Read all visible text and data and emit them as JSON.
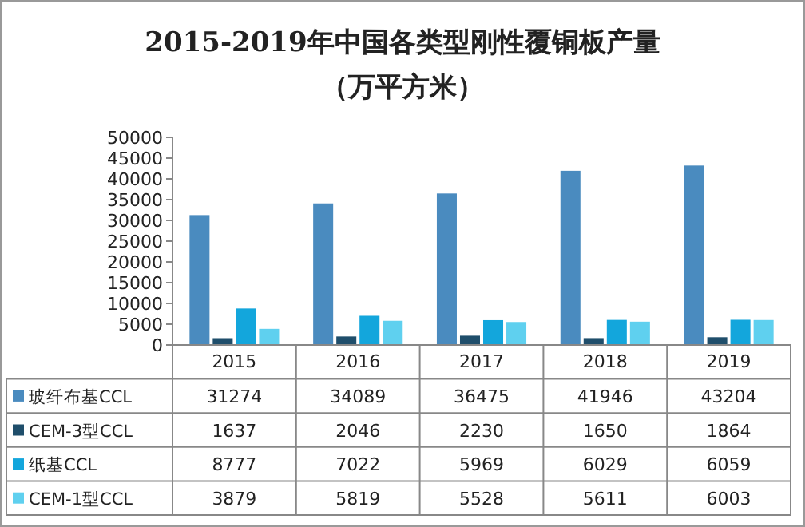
{
  "chart_data": {
    "type": "bar",
    "title": "2015-2019年中国各类型刚性覆铜板产量",
    "subtitle": "（万平方米）",
    "categories": [
      "2015",
      "2016",
      "2017",
      "2018",
      "2019"
    ],
    "series": [
      {
        "name": "玻纤布基CCL",
        "color": "#4a8bbf",
        "values": [
          31274,
          34089,
          36475,
          41946,
          43204
        ]
      },
      {
        "name": "CEM-3型CCL",
        "color": "#1f4e6b",
        "values": [
          1637,
          2046,
          2230,
          1650,
          1864
        ]
      },
      {
        "name": "纸基CCL",
        "color": "#13a6dc",
        "values": [
          8777,
          7022,
          5969,
          6029,
          6059
        ]
      },
      {
        "name": "CEM-1型CCL",
        "color": "#5fd0ef",
        "values": [
          3879,
          5819,
          5528,
          5611,
          6003
        ]
      }
    ],
    "ylim": [
      0,
      50000
    ],
    "yticks": [
      0,
      5000,
      10000,
      15000,
      20000,
      25000,
      30000,
      35000,
      40000,
      45000,
      50000
    ],
    "grid": false,
    "legend": "bottom",
    "data_labels": true
  }
}
